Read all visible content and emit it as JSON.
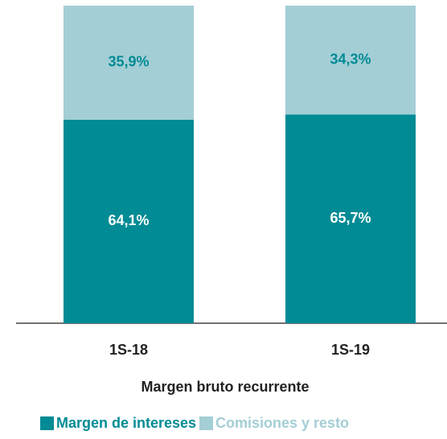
{
  "chart_data": {
    "type": "stacked_bar",
    "categories": [
      "1S-18",
      "1S-19"
    ],
    "series": [
      {
        "name": "Margen de intereses",
        "color": "#008b95",
        "values": [
          64.1,
          65.7
        ],
        "value_labels": [
          "64,1%",
          "65,7%"
        ]
      },
      {
        "name": "Comisiones y resto",
        "color": "#a4ced5",
        "values": [
          35.9,
          34.3
        ],
        "value_labels": [
          "35,9%",
          "34,3%"
        ]
      }
    ],
    "x_label": "Margen bruto recurrente",
    "ylim": [
      0,
      100
    ]
  }
}
